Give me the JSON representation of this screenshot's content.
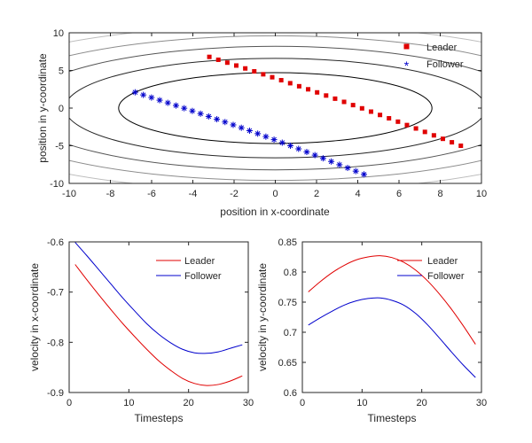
{
  "chart_data": [
    {
      "type": "scatter",
      "title": "",
      "xlabel": "position in x-coordinate",
      "ylabel": "position in y-coordinate",
      "xlim": [
        -10,
        10
      ],
      "ylim": [
        -10,
        10
      ],
      "xticks": [
        "-10",
        "-8",
        "-6",
        "-4",
        "-2",
        "0",
        "2",
        "4",
        "6",
        "8",
        "10"
      ],
      "yticks": [
        "-10",
        "-5",
        "0",
        "5",
        "10"
      ],
      "contours": [
        {
          "a": 7.6,
          "b": 4.7,
          "color": "#000000"
        },
        {
          "a": 10.2,
          "b": 6.6,
          "color": "#262626"
        },
        {
          "a": 12.4,
          "b": 8.2,
          "color": "#555555"
        },
        {
          "a": 14.5,
          "b": 9.6,
          "color": "#8c8c8c"
        },
        {
          "a": 16.6,
          "b": 11.0,
          "color": "#bdbdbd"
        }
      ],
      "legend": {
        "placement": "top-right",
        "entries": [
          "Leader",
          "Follower"
        ]
      },
      "series": [
        {
          "name": "Leader",
          "marker": "square",
          "color": "#e00000",
          "start": [
            -3.2,
            6.8
          ],
          "end": [
            9.0,
            -5.0
          ],
          "points": 29
        },
        {
          "name": "Follower",
          "marker": "asterisk",
          "color": "#0000cc",
          "start": [
            -6.8,
            2.1
          ],
          "end": [
            4.3,
            -8.8
          ],
          "points": 29
        }
      ]
    },
    {
      "type": "line",
      "title": "",
      "xlabel": "Timesteps",
      "ylabel": "velocity in x-coordinate",
      "xlim": [
        0,
        30
      ],
      "ylim": [
        -0.9,
        -0.6
      ],
      "xticks": [
        "0",
        "10",
        "20",
        "30"
      ],
      "yticks": [
        "-0.9",
        "-0.8",
        "-0.7",
        "-0.6"
      ],
      "legend": {
        "placement": "top-right",
        "entries": [
          "Leader",
          "Follower"
        ]
      },
      "x": [
        1,
        3,
        5,
        7,
        9,
        11,
        13,
        15,
        17,
        19,
        21,
        23,
        25,
        27,
        29
      ],
      "series": [
        {
          "name": "Leader",
          "color": "#e00000",
          "values": [
            -0.645,
            -0.676,
            -0.706,
            -0.735,
            -0.763,
            -0.789,
            -0.814,
            -0.837,
            -0.856,
            -0.872,
            -0.882,
            -0.886,
            -0.884,
            -0.877,
            -0.867
          ]
        },
        {
          "name": "Follower",
          "color": "#0000cc",
          "values": [
            -0.601,
            -0.628,
            -0.656,
            -0.684,
            -0.712,
            -0.738,
            -0.763,
            -0.784,
            -0.801,
            -0.814,
            -0.821,
            -0.822,
            -0.819,
            -0.812,
            -0.805
          ]
        }
      ]
    },
    {
      "type": "line",
      "title": "",
      "xlabel": "Timesteps",
      "ylabel": "velocity in y-coordinate",
      "xlim": [
        0,
        30
      ],
      "ylim": [
        0.6,
        0.85
      ],
      "xticks": [
        "0",
        "10",
        "20",
        "30"
      ],
      "yticks": [
        "0.6",
        "0.65",
        "0.7",
        "0.75",
        "0.8",
        "0.85"
      ],
      "legend": {
        "placement": "top-right",
        "entries": [
          "Leader",
          "Follower"
        ]
      },
      "x": [
        1,
        3,
        5,
        7,
        9,
        11,
        13,
        15,
        17,
        19,
        21,
        23,
        25,
        27,
        29
      ],
      "series": [
        {
          "name": "Leader",
          "color": "#e00000",
          "values": [
            0.767,
            0.784,
            0.799,
            0.811,
            0.82,
            0.825,
            0.827,
            0.824,
            0.816,
            0.803,
            0.785,
            0.763,
            0.738,
            0.71,
            0.68
          ]
        },
        {
          "name": "Follower",
          "color": "#0000cc",
          "values": [
            0.712,
            0.724,
            0.735,
            0.745,
            0.752,
            0.756,
            0.757,
            0.753,
            0.745,
            0.731,
            0.712,
            0.69,
            0.667,
            0.645,
            0.625
          ]
        }
      ]
    }
  ]
}
